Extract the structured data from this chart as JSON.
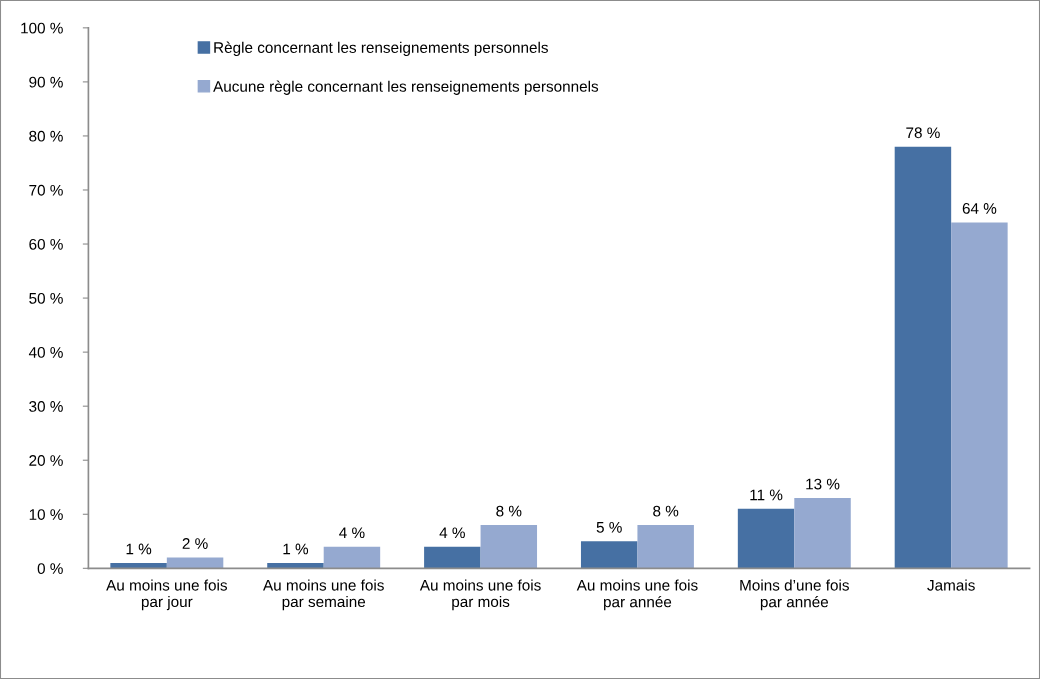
{
  "chart_data": {
    "type": "bar",
    "categories": [
      "Au moins une fois\npar jour",
      "Au moins une fois\npar semaine",
      "Au moins une fois\npar mois",
      "Au moins une fois\npar année",
      "Moins d’une fois\npar année",
      "Jamais"
    ],
    "series": [
      {
        "name": "Règle concernant les renseignements personnels",
        "color": "#4670a3",
        "values": [
          1,
          1,
          4,
          5,
          11,
          78
        ],
        "value_labels": [
          "1 %",
          "1 %",
          "4 %",
          "5 %",
          "11 %",
          "78 %"
        ]
      },
      {
        "name": "Aucune règle concernant les renseignements personnels",
        "color": "#95a9d0",
        "values": [
          2,
          4,
          8,
          8,
          13,
          64
        ],
        "value_labels": [
          "2 %",
          "4 %",
          "8 %",
          "8 %",
          "13 %",
          "64 %"
        ]
      }
    ],
    "ylim": [
      0,
      100
    ],
    "yticks": [
      {
        "value": 0,
        "label": "0 %"
      },
      {
        "value": 10,
        "label": "10 %"
      },
      {
        "value": 20,
        "label": "20 %"
      },
      {
        "value": 30,
        "label": "30 %"
      },
      {
        "value": 40,
        "label": "40 %"
      },
      {
        "value": 50,
        "label": "50 %"
      },
      {
        "value": 60,
        "label": "60 %"
      },
      {
        "value": 70,
        "label": "70 %"
      },
      {
        "value": 80,
        "label": "80 %"
      },
      {
        "value": 90,
        "label": "90 %"
      },
      {
        "value": 100,
        "label": "100 %"
      }
    ],
    "grid": false,
    "legend": "top left"
  }
}
